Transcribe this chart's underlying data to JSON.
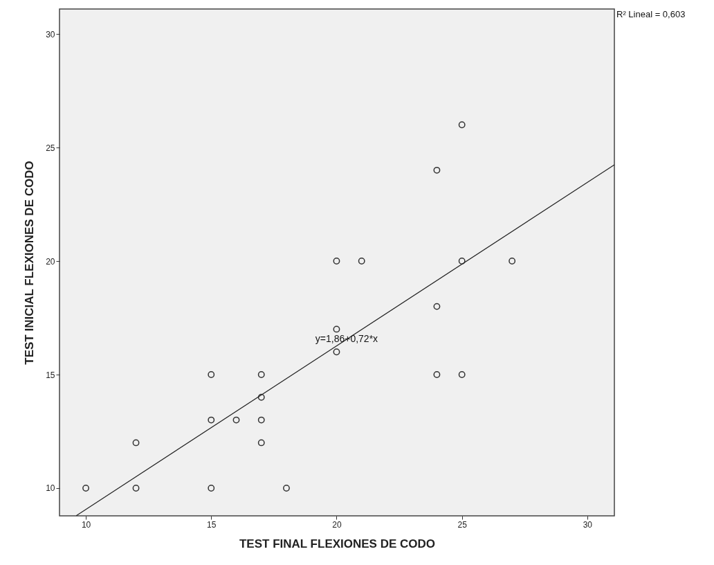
{
  "chart_data": {
    "type": "scatter",
    "xlabel": "TEST FINAL FLEXIONES DE CODO",
    "ylabel": "TEST INICIAL FLEXIONES DE CODO",
    "xlim": [
      8.95,
      31.08
    ],
    "ylim": [
      8.78,
      31.1
    ],
    "xticks": [
      10,
      15,
      20,
      25,
      30
    ],
    "yticks": [
      10,
      15,
      20,
      25,
      30
    ],
    "grid": false,
    "marker": "circle",
    "series": [
      {
        "color": "#333333",
        "x": [
          10,
          12,
          12,
          15,
          15,
          15,
          16,
          17,
          17,
          17,
          17,
          18,
          20,
          20,
          20,
          21,
          24,
          24,
          24,
          25,
          25,
          25,
          27
        ],
        "values": [
          10,
          12,
          10,
          15,
          13,
          10,
          13,
          15,
          14,
          13,
          12,
          10,
          20,
          17,
          16,
          20,
          24,
          18,
          15,
          26,
          20,
          15,
          20
        ]
      },
      {
        "type": "line",
        "marker": "none",
        "color": "#222222",
        "x": [
          9.62,
          31.08
        ],
        "values": [
          8.79,
          24.24
        ]
      }
    ],
    "annotations": [
      {
        "text": "y=1,86+0,72*x",
        "x": 20.4,
        "y": 16.55
      },
      "R² Lineal = 0,603"
    ]
  }
}
